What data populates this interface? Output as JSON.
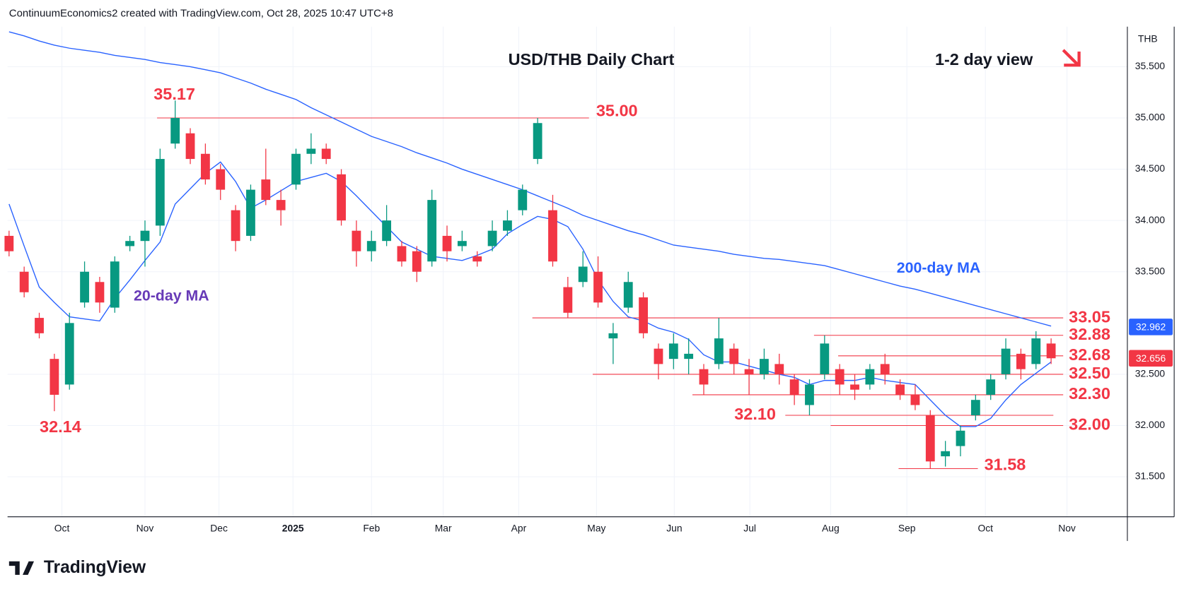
{
  "header": "ContinuumEconomics2 created with TradingView.com, Oct 28, 2025 10:47 UTC+8",
  "logo": "TradingView",
  "chart_data": {
    "type": "candlestick",
    "title": "USD/THB Daily Chart",
    "subtitle": "1-2 day view",
    "currency": "THB",
    "up_color": "#089981",
    "down_color": "#f23645",
    "grid": true,
    "xlim": [
      -0.1,
      74.05
    ],
    "ylim": [
      31.11,
      35.89
    ],
    "xticks": [
      {
        "value": 3.5,
        "label": "Oct"
      },
      {
        "value": 9,
        "label": "Nov"
      },
      {
        "value": 13.9,
        "label": "Dec"
      },
      {
        "value": 18.8,
        "label": "2025"
      },
      {
        "value": 24,
        "label": "Feb"
      },
      {
        "value": 28.75,
        "label": "Mar"
      },
      {
        "value": 33.75,
        "label": "Apr"
      },
      {
        "value": 38.9,
        "label": "May"
      },
      {
        "value": 44.05,
        "label": "Jun"
      },
      {
        "value": 49.05,
        "label": "Jul"
      },
      {
        "value": 54.4,
        "label": "Aug"
      },
      {
        "value": 59.45,
        "label": "Sep"
      },
      {
        "value": 64.65,
        "label": "Oct"
      },
      {
        "value": 70.05,
        "label": "Nov"
      }
    ],
    "yticks": [
      {
        "value": 31.5,
        "label": "31.500"
      },
      {
        "value": 32,
        "label": "32.000"
      },
      {
        "value": 32.5,
        "label": "32.500"
      },
      {
        "value": 33.5,
        "label": "33.500"
      },
      {
        "value": 34,
        "label": "34.000"
      },
      {
        "value": 34.5,
        "label": "34.500"
      },
      {
        "value": 35,
        "label": "35.000"
      },
      {
        "value": 35.5,
        "label": "35.500"
      }
    ],
    "open": [
      33.85,
      33.5,
      33.05,
      32.65,
      32.4,
      33.2,
      33.4,
      33.15,
      33.75,
      33.8,
      33.95,
      34.75,
      34.85,
      34.65,
      34.5,
      34.1,
      33.85,
      34.4,
      34.2,
      34.35,
      34.65,
      34.7,
      34.45,
      33.9,
      33.7,
      33.8,
      33.75,
      33.7,
      33.6,
      33.85,
      33.75,
      33.65,
      33.75,
      33.9,
      34.1,
      34.6,
      34.1,
      33.35,
      33.4,
      33.5,
      32.85,
      33.15,
      33.25,
      32.75,
      32.65,
      32.65,
      32.55,
      32.6,
      32.75,
      32.55,
      32.5,
      32.6,
      32.45,
      32.2,
      32.5,
      32.55,
      32.4,
      32.4,
      32.6,
      32.4,
      32.3,
      32.1,
      31.7,
      31.8,
      32.1,
      32.3,
      32.5,
      32.7,
      32.6,
      32.8
    ],
    "high": [
      33.9,
      33.55,
      33.1,
      32.7,
      33.1,
      33.6,
      33.45,
      33.65,
      33.85,
      34.0,
      34.7,
      35.17,
      34.9,
      34.75,
      34.55,
      34.15,
      34.35,
      34.7,
      34.3,
      34.7,
      34.85,
      34.75,
      34.5,
      34.0,
      33.9,
      34.15,
      33.8,
      33.75,
      34.3,
      33.95,
      33.9,
      33.7,
      34.0,
      34.1,
      34.35,
      35.0,
      34.25,
      33.45,
      33.7,
      33.65,
      33.0,
      33.5,
      33.3,
      32.8,
      32.9,
      32.85,
      32.6,
      33.05,
      32.8,
      32.65,
      32.75,
      32.7,
      32.5,
      32.45,
      32.88,
      32.6,
      32.5,
      32.6,
      32.7,
      32.45,
      32.4,
      32.15,
      31.85,
      32.0,
      32.3,
      32.5,
      32.85,
      32.75,
      32.92,
      32.85
    ],
    "low": [
      33.65,
      33.25,
      32.85,
      32.14,
      32.35,
      33.15,
      33.1,
      33.1,
      33.7,
      33.55,
      33.85,
      34.7,
      34.55,
      34.35,
      34.2,
      33.7,
      33.8,
      34.15,
      33.95,
      34.3,
      34.55,
      34.55,
      33.95,
      33.55,
      33.6,
      33.75,
      33.55,
      33.4,
      33.55,
      33.6,
      33.7,
      33.55,
      33.7,
      33.85,
      34.05,
      34.55,
      33.55,
      33.05,
      33.35,
      33.15,
      32.6,
      33.1,
      32.85,
      32.45,
      32.55,
      32.5,
      32.3,
      32.55,
      32.5,
      32.3,
      32.45,
      32.4,
      32.2,
      32.1,
      32.45,
      32.3,
      32.25,
      32.35,
      32.4,
      32.25,
      32.15,
      31.58,
      31.6,
      31.7,
      32.05,
      32.25,
      32.45,
      32.45,
      32.55,
      32.6
    ],
    "close": [
      33.7,
      33.3,
      32.9,
      32.3,
      33.0,
      33.5,
      33.2,
      33.6,
      33.8,
      33.9,
      34.6,
      35.0,
      34.6,
      34.4,
      34.3,
      33.8,
      34.3,
      34.2,
      34.1,
      34.65,
      34.7,
      34.6,
      34.0,
      33.7,
      33.8,
      34.0,
      33.6,
      33.5,
      34.2,
      33.7,
      33.8,
      33.6,
      33.9,
      34.0,
      34.3,
      34.95,
      33.6,
      33.1,
      33.55,
      33.2,
      32.9,
      33.4,
      32.9,
      32.6,
      32.8,
      32.7,
      32.4,
      32.85,
      32.6,
      32.5,
      32.65,
      32.5,
      32.3,
      32.4,
      32.8,
      32.4,
      32.35,
      32.55,
      32.5,
      32.3,
      32.2,
      31.65,
      31.75,
      31.95,
      32.25,
      32.45,
      32.75,
      32.55,
      32.85,
      32.656
    ],
    "series": [
      {
        "name": "200-day MA",
        "color": "#2962ff",
        "label_color": "#2962ff",
        "values": [
          35.84,
          35.8,
          35.75,
          35.71,
          35.68,
          35.66,
          35.64,
          35.61,
          35.59,
          35.57,
          35.54,
          35.52,
          35.5,
          35.47,
          35.44,
          35.39,
          35.34,
          35.28,
          35.23,
          35.18,
          35.1,
          35.03,
          34.96,
          34.89,
          34.82,
          34.77,
          34.72,
          34.66,
          34.61,
          34.56,
          34.5,
          34.45,
          34.4,
          34.35,
          34.3,
          34.24,
          34.18,
          34.12,
          34.05,
          34.0,
          33.95,
          33.9,
          33.86,
          33.81,
          33.76,
          33.74,
          33.72,
          33.7,
          33.67,
          33.65,
          33.63,
          33.62,
          33.6,
          33.58,
          33.56,
          33.52,
          33.48,
          33.44,
          33.4,
          33.36,
          33.33,
          33.29,
          33.25,
          33.21,
          33.17,
          33.13,
          33.09,
          33.05,
          33.01,
          32.97
        ]
      },
      {
        "name": "20-day MA",
        "color": "#2962ff",
        "label_color": "#673ab7",
        "values": [
          34.16,
          33.75,
          33.35,
          33.2,
          33.06,
          33.04,
          33.02,
          33.24,
          33.42,
          33.61,
          33.79,
          34.16,
          34.31,
          34.46,
          34.57,
          34.38,
          34.12,
          34.2,
          34.29,
          34.38,
          34.42,
          34.46,
          34.38,
          34.24,
          34.09,
          33.94,
          33.79,
          33.72,
          33.65,
          33.63,
          33.61,
          33.66,
          33.72,
          33.87,
          33.96,
          34.04,
          34.01,
          33.94,
          33.72,
          33.42,
          33.21,
          33.06,
          33.02,
          32.95,
          32.91,
          32.84,
          32.69,
          32.62,
          32.62,
          32.58,
          32.54,
          32.5,
          32.47,
          32.4,
          32.44,
          32.44,
          32.44,
          32.47,
          32.44,
          32.42,
          32.4,
          32.25,
          32.1,
          31.99,
          31.99,
          32.07,
          32.25,
          32.4,
          32.51,
          32.62
        ]
      }
    ],
    "levels": [
      {
        "value": 35,
        "label": "35.00"
      },
      {
        "value": 33.05,
        "label": "33.05"
      },
      {
        "value": 32.88,
        "label": "32.88"
      },
      {
        "value": 32.68,
        "label": "32.68"
      },
      {
        "value": 32.5,
        "label": "32.50"
      },
      {
        "value": 32.3,
        "label": "32.30"
      },
      {
        "value": 32.1,
        "label": "32.10"
      },
      {
        "value": 32,
        "label": "32.00"
      },
      {
        "value": 31.58,
        "label": "31.58"
      }
    ],
    "level_color": "#f23645",
    "annotations": [
      {
        "value": 35.17,
        "label": "35.17"
      },
      {
        "value": 32.14,
        "label": "32.14"
      }
    ],
    "last_labels": [
      {
        "value": 32.962,
        "label": "32.962",
        "color": "#2962ff"
      },
      {
        "value": 32.656,
        "label": "32.656",
        "color": "#f23645"
      }
    ]
  }
}
